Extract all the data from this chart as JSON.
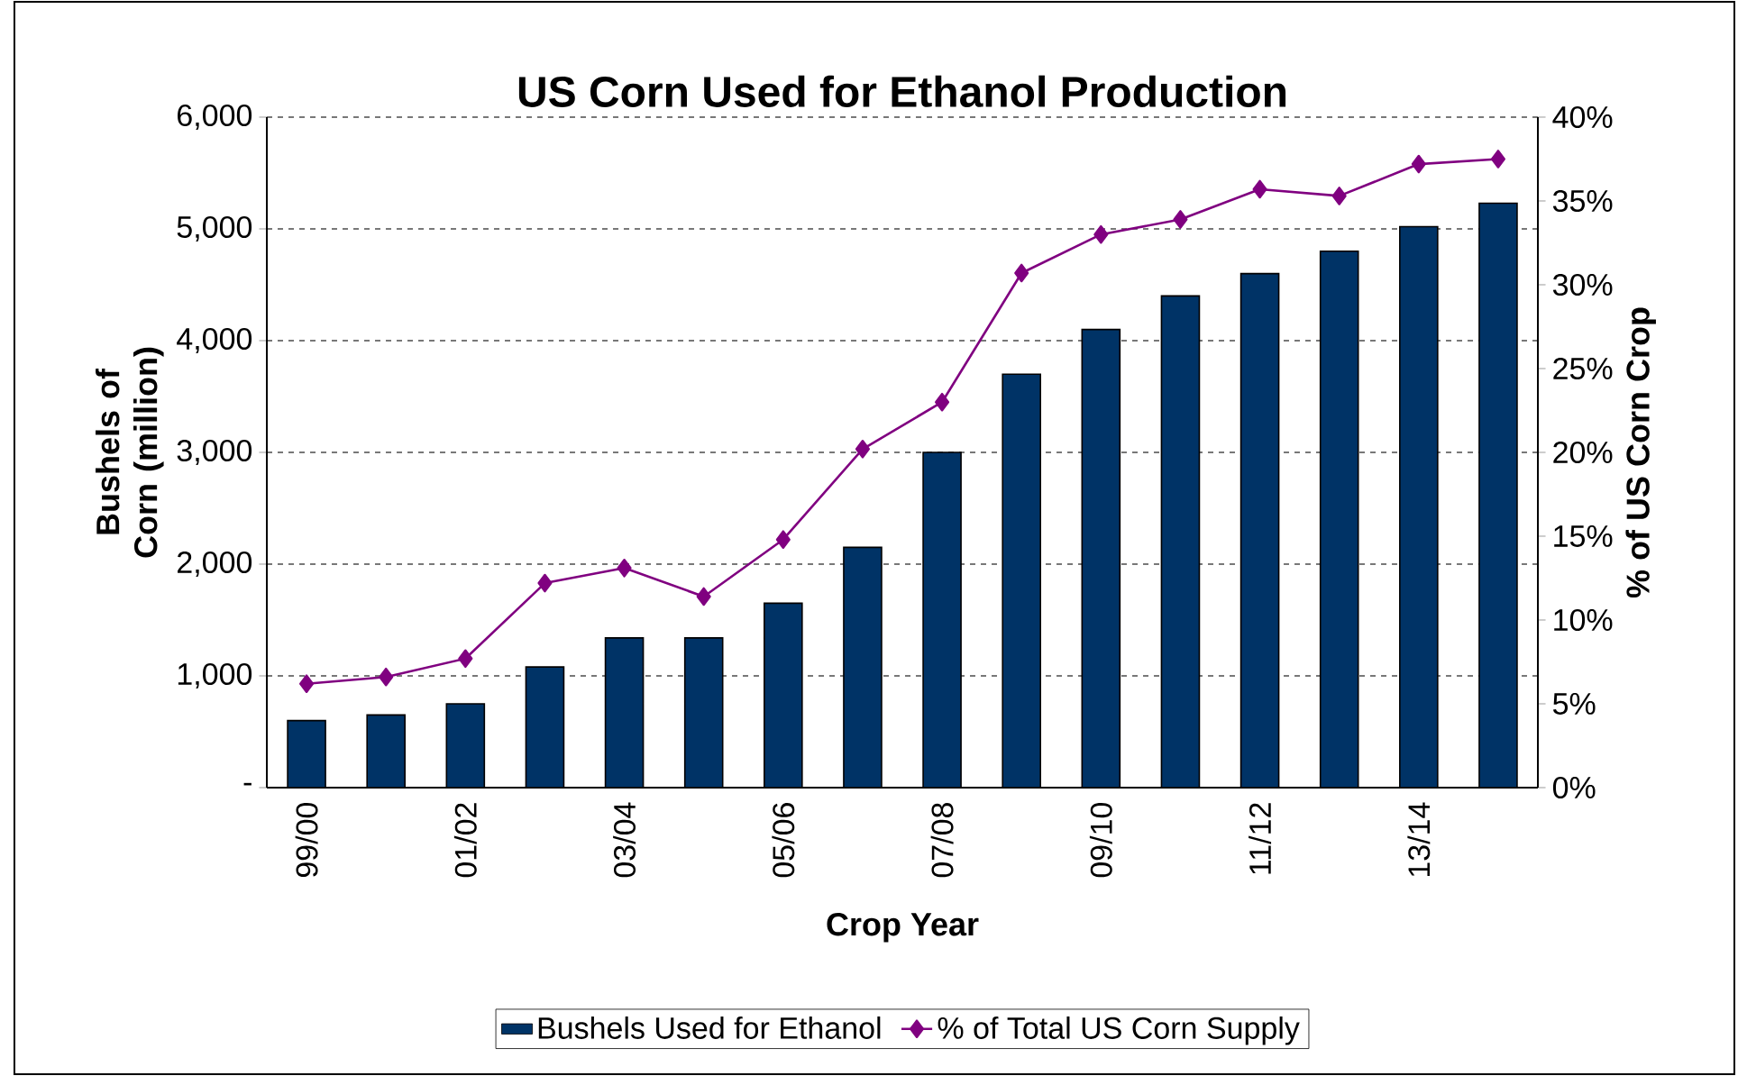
{
  "chart_data": {
    "type": "bar",
    "title": "US Corn Used for Ethanol Production",
    "xlabel": "Crop Year",
    "ylabel": "Bushels of Corn (million)",
    "y2label": "% of US Corn Crop",
    "categories": [
      "99/00",
      null,
      "01/02",
      null,
      "03/04",
      null,
      "05/06",
      null,
      "07/08",
      null,
      "09/10",
      null,
      "11/12",
      null,
      "13/14",
      null
    ],
    "series": [
      {
        "name": "Bushels Used for Ethanol",
        "color": "#003366",
        "values": [
          600,
          650,
          750,
          1080,
          1340,
          1340,
          1650,
          2150,
          3000,
          3700,
          4100,
          4400,
          4600,
          4800,
          5020,
          5230
        ]
      },
      {
        "name": "% of Total US Corn Supply",
        "type": "line",
        "axis": "y2",
        "color": "#800080",
        "values": [
          6.2,
          6.6,
          7.7,
          12.2,
          13.1,
          11.4,
          14.8,
          20.2,
          23.0,
          30.7,
          33.0,
          33.9,
          35.7,
          35.3,
          37.2,
          37.5
        ]
      }
    ],
    "ylim": [
      0,
      6000
    ],
    "yticks": [
      {
        "value": 0,
        "label": "-"
      },
      {
        "value": 1000,
        "label": "1,000"
      },
      {
        "value": 2000,
        "label": "2,000"
      },
      {
        "value": 3000,
        "label": "3,000"
      },
      {
        "value": 4000,
        "label": "4,000"
      },
      {
        "value": 5000,
        "label": "5,000"
      },
      {
        "value": 6000,
        "label": "6,000"
      }
    ],
    "y2lim": [
      0,
      40
    ],
    "y2ticks": [
      {
        "value": 0,
        "label": "0%"
      },
      {
        "value": 5,
        "label": "5%"
      },
      {
        "value": 10,
        "label": "10%"
      },
      {
        "value": 15,
        "label": "15%"
      },
      {
        "value": 20,
        "label": "20%"
      },
      {
        "value": 25,
        "label": "25%"
      },
      {
        "value": 30,
        "label": "30%"
      },
      {
        "value": 35,
        "label": "35%"
      },
      {
        "value": 40,
        "label": "40%"
      }
    ],
    "grid": "y",
    "legend": "bottom",
    "marker": "diamond",
    "line_style": "solid"
  }
}
